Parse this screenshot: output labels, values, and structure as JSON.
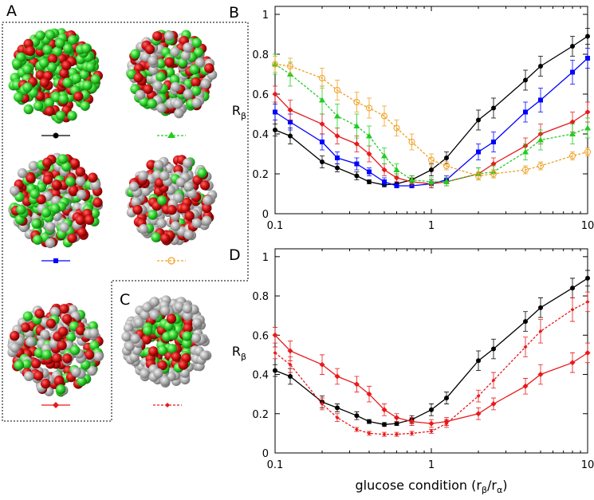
{
  "panel_labels": [
    "A",
    "C"
  ],
  "chart_data": [
    {
      "type": "line",
      "panel_label": "B",
      "ylabel": "R",
      "ylabel_sub": "β",
      "log_x": true,
      "xlim": [
        0.1,
        10
      ],
      "xticks": [
        0.1,
        1,
        10
      ],
      "xminorticks": [
        0.2,
        0.3,
        0.4,
        0.5,
        0.6,
        0.7,
        0.8,
        0.9,
        2,
        3,
        4,
        5,
        6,
        7,
        8,
        9
      ],
      "ylim": [
        0,
        1.04
      ],
      "yticks": [
        0,
        0.2,
        0.4,
        0.6,
        0.8,
        1
      ],
      "x": [
        0.1,
        0.125,
        0.2,
        0.25,
        0.333,
        0.4,
        0.5,
        0.6,
        0.75,
        1,
        1.25,
        2,
        2.5,
        4,
        5,
        8,
        10
      ],
      "series": [
        {
          "color": "#000000",
          "marker": "circle",
          "dash": false,
          "values": [
            0.42,
            0.39,
            0.26,
            0.23,
            0.19,
            0.16,
            0.145,
            0.15,
            0.17,
            0.22,
            0.28,
            0.47,
            0.53,
            0.67,
            0.74,
            0.84,
            0.89
          ],
          "errors": [
            0.03,
            0.04,
            0.03,
            0.02,
            0.02,
            0.01,
            0.01,
            0.01,
            0.02,
            0.03,
            0.03,
            0.05,
            0.05,
            0.05,
            0.05,
            0.05,
            0.04
          ]
        },
        {
          "color": "#0000ff",
          "marker": "square",
          "dash": false,
          "values": [
            0.51,
            0.46,
            0.36,
            0.28,
            0.25,
            0.21,
            0.16,
            0.14,
            0.14,
            0.15,
            0.17,
            0.31,
            0.36,
            0.51,
            0.57,
            0.71,
            0.78
          ],
          "errors": [
            0.04,
            0.04,
            0.04,
            0.03,
            0.03,
            0.02,
            0.02,
            0.01,
            0.01,
            0.02,
            0.02,
            0.04,
            0.05,
            0.05,
            0.06,
            0.06,
            0.05
          ]
        },
        {
          "color": "#e8191b",
          "marker": "diamond",
          "dash": false,
          "values": [
            0.6,
            0.52,
            0.45,
            0.39,
            0.35,
            0.3,
            0.22,
            0.18,
            0.16,
            0.15,
            0.16,
            0.2,
            0.25,
            0.34,
            0.4,
            0.46,
            0.51
          ],
          "errors": [
            0.04,
            0.05,
            0.05,
            0.04,
            0.04,
            0.04,
            0.03,
            0.02,
            0.02,
            0.02,
            0.02,
            0.03,
            0.03,
            0.04,
            0.05,
            0.05,
            0.05
          ]
        },
        {
          "color": "#22cc22",
          "marker": "triangle",
          "dash": true,
          "values": [
            0.75,
            0.7,
            0.57,
            0.49,
            0.44,
            0.39,
            0.29,
            0.22,
            0.17,
            0.16,
            0.16,
            0.2,
            0.21,
            0.31,
            0.37,
            0.4,
            0.43
          ],
          "errors": [
            0.05,
            0.06,
            0.07,
            0.06,
            0.06,
            0.05,
            0.04,
            0.03,
            0.02,
            0.02,
            0.02,
            0.03,
            0.03,
            0.04,
            0.05,
            0.05,
            0.05
          ]
        },
        {
          "color": "#f0a020",
          "marker": "open-circle",
          "dash": true,
          "values": [
            0.75,
            0.74,
            0.68,
            0.62,
            0.56,
            0.53,
            0.49,
            0.43,
            0.36,
            0.27,
            0.24,
            0.19,
            0.2,
            0.22,
            0.24,
            0.29,
            0.31
          ],
          "errors": [
            0.04,
            0.04,
            0.05,
            0.05,
            0.05,
            0.05,
            0.05,
            0.04,
            0.04,
            0.03,
            0.02,
            0.02,
            0.02,
            0.02,
            0.02,
            0.02,
            0.02
          ]
        }
      ]
    },
    {
      "type": "line",
      "panel_label": "D",
      "ylabel": "R",
      "ylabel_sub": "β",
      "xlabel_parts": [
        "glucose condition (r",
        "β",
        "/r",
        "α",
        ")"
      ],
      "log_x": true,
      "xlim": [
        0.1,
        10
      ],
      "xticks": [
        0.1,
        1,
        10
      ],
      "xminorticks": [
        0.2,
        0.3,
        0.4,
        0.5,
        0.6,
        0.7,
        0.8,
        0.9,
        2,
        3,
        4,
        5,
        6,
        7,
        8,
        9
      ],
      "ylim": [
        0,
        1.04
      ],
      "yticks": [
        0,
        0.2,
        0.4,
        0.6,
        0.8,
        1
      ],
      "x": [
        0.1,
        0.125,
        0.2,
        0.25,
        0.333,
        0.4,
        0.5,
        0.6,
        0.75,
        1,
        1.25,
        2,
        2.5,
        4,
        5,
        8,
        10
      ],
      "series": [
        {
          "color": "#000000",
          "marker": "circle",
          "dash": false,
          "values": [
            0.42,
            0.39,
            0.26,
            0.23,
            0.19,
            0.16,
            0.145,
            0.15,
            0.17,
            0.22,
            0.28,
            0.47,
            0.53,
            0.67,
            0.74,
            0.84,
            0.89
          ],
          "errors": [
            0.03,
            0.04,
            0.03,
            0.02,
            0.02,
            0.01,
            0.01,
            0.01,
            0.02,
            0.03,
            0.03,
            0.05,
            0.05,
            0.05,
            0.05,
            0.05,
            0.04
          ]
        },
        {
          "color": "#e8191b",
          "marker": "diamond",
          "dash": false,
          "values": [
            0.6,
            0.52,
            0.45,
            0.39,
            0.35,
            0.3,
            0.22,
            0.18,
            0.16,
            0.15,
            0.16,
            0.2,
            0.25,
            0.34,
            0.4,
            0.46,
            0.51
          ],
          "errors": [
            0.04,
            0.05,
            0.05,
            0.04,
            0.04,
            0.04,
            0.03,
            0.02,
            0.02,
            0.02,
            0.02,
            0.03,
            0.03,
            0.04,
            0.05,
            0.05,
            0.05
          ]
        },
        {
          "color": "#e8191b",
          "marker": "small-diamond",
          "dash": true,
          "values": [
            0.51,
            0.45,
            0.25,
            0.18,
            0.12,
            0.1,
            0.095,
            0.095,
            0.1,
            0.11,
            0.15,
            0.29,
            0.37,
            0.54,
            0.62,
            0.73,
            0.77
          ],
          "errors": [
            0.03,
            0.04,
            0.03,
            0.02,
            0.01,
            0.01,
            0.01,
            0.01,
            0.01,
            0.01,
            0.02,
            0.03,
            0.04,
            0.05,
            0.06,
            0.06,
            0.05
          ]
        }
      ]
    }
  ]
}
